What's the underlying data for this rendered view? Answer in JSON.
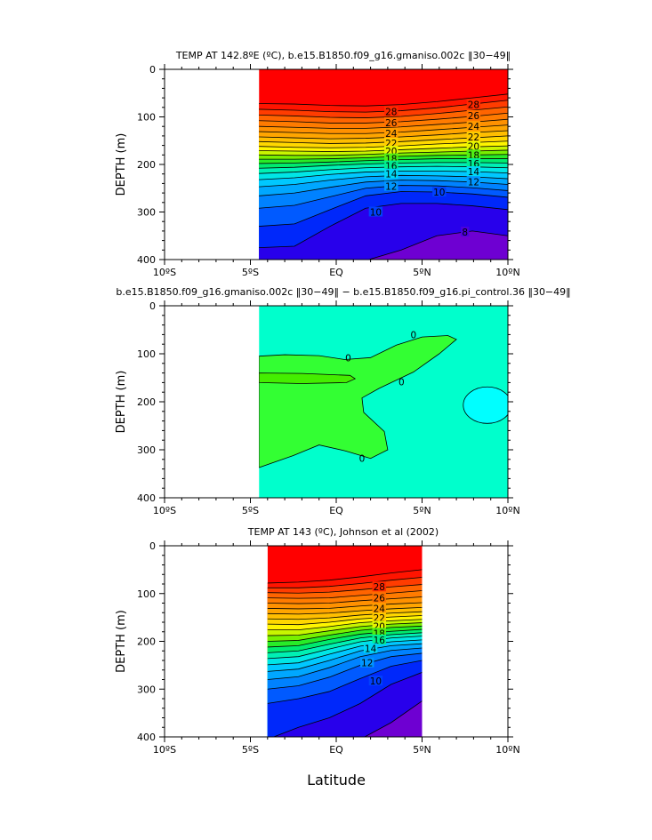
{
  "chart_data": [
    {
      "type": "contour",
      "title": "TEMP AT 142.8ºE (ºC), b.e15.B1850.f09_g16.gmaniso.002c ‖30−49‖",
      "ylabel": "DEPTH (m)",
      "xlabel": "",
      "xlim": [
        -10,
        10
      ],
      "ylim": [
        400,
        0
      ],
      "x_ticks": [
        "10ºS",
        "5ºS",
        "EQ",
        "5ºN",
        "10ºN"
      ],
      "y_ticks": [
        "0",
        "100",
        "200",
        "300",
        "400"
      ],
      "data_x_range": [
        -4.5,
        10
      ],
      "contour_interval": 1,
      "contours": [
        {
          "level": 29,
          "depth": [
            72,
            73,
            76,
            77,
            74,
            68,
            60,
            52
          ]
        },
        {
          "level": 28,
          "depth": [
            84,
            86,
            89,
            90,
            87,
            81,
            73,
            65
          ]
        },
        {
          "level": 27,
          "depth": [
            96,
            98,
            101,
            102,
            99,
            93,
            86,
            79
          ]
        },
        {
          "level": 26,
          "depth": [
            108,
            110,
            113,
            113,
            110,
            105,
            99,
            92
          ]
        },
        {
          "level": 25,
          "depth": [
            120,
            122,
            124,
            124,
            121,
            116,
            111,
            105
          ]
        },
        {
          "level": 24,
          "depth": [
            131,
            133,
            135,
            135,
            132,
            127,
            122,
            117
          ]
        },
        {
          "level": 23,
          "depth": [
            142,
            144,
            146,
            145,
            142,
            138,
            133,
            129
          ]
        },
        {
          "level": 22,
          "depth": [
            152,
            154,
            156,
            155,
            152,
            148,
            144,
            140
          ]
        },
        {
          "level": 21,
          "depth": [
            162,
            164,
            165,
            164,
            161,
            157,
            154,
            151
          ]
        },
        {
          "level": 20,
          "depth": [
            171,
            172,
            173,
            172,
            169,
            166,
            163,
            161
          ]
        },
        {
          "level": 19,
          "depth": [
            180,
            181,
            181,
            179,
            176,
            174,
            172,
            170
          ]
        },
        {
          "level": 18,
          "depth": [
            189,
            189,
            188,
            186,
            183,
            181,
            180,
            179
          ]
        },
        {
          "level": 17,
          "depth": [
            198,
            197,
            195,
            192,
            190,
            188,
            188,
            188
          ]
        },
        {
          "level": 16,
          "depth": [
            208,
            206,
            202,
            199,
            197,
            196,
            196,
            197
          ]
        },
        {
          "level": 15,
          "depth": [
            219,
            216,
            211,
            207,
            205,
            204,
            205,
            207
          ]
        },
        {
          "level": 14,
          "depth": [
            232,
            228,
            221,
            216,
            214,
            214,
            215,
            218
          ]
        },
        {
          "level": 13,
          "depth": [
            247,
            242,
            233,
            226,
            223,
            224,
            226,
            230
          ]
        },
        {
          "level": 12,
          "depth": [
            266,
            260,
            248,
            237,
            233,
            234,
            237,
            242
          ]
        },
        {
          "level": 11,
          "depth": [
            292,
            286,
            268,
            250,
            244,
            245,
            249,
            255
          ]
        },
        {
          "level": 10,
          "depth": [
            330,
            325,
            295,
            266,
            257,
            258,
            262,
            269
          ]
        },
        {
          "level": 9,
          "depth": [
            375,
            372,
            330,
            292,
            282,
            282,
            287,
            295
          ]
        },
        {
          "level": 8,
          "depth": [
            405,
            405,
            405,
            402,
            380,
            350,
            340,
            350
          ]
        }
      ],
      "contour_labels": [
        {
          "x": 3.2,
          "depth": 89,
          "text": "28"
        },
        {
          "x": 8.0,
          "depth": 74,
          "text": "28"
        },
        {
          "x": 3.2,
          "depth": 112,
          "text": "26"
        },
        {
          "x": 8.0,
          "depth": 97,
          "text": "26"
        },
        {
          "x": 3.2,
          "depth": 135,
          "text": "24"
        },
        {
          "x": 8.0,
          "depth": 120,
          "text": "24"
        },
        {
          "x": 3.2,
          "depth": 155,
          "text": "22"
        },
        {
          "x": 8.0,
          "depth": 142,
          "text": "22"
        },
        {
          "x": 3.2,
          "depth": 172,
          "text": "20"
        },
        {
          "x": 8.0,
          "depth": 162,
          "text": "20"
        },
        {
          "x": 3.2,
          "depth": 188,
          "text": "18"
        },
        {
          "x": 8.0,
          "depth": 180,
          "text": "18"
        },
        {
          "x": 3.2,
          "depth": 203,
          "text": "16"
        },
        {
          "x": 8.0,
          "depth": 198,
          "text": "16"
        },
        {
          "x": 3.2,
          "depth": 220,
          "text": "14"
        },
        {
          "x": 8.0,
          "depth": 215,
          "text": "14"
        },
        {
          "x": 3.2,
          "depth": 246,
          "text": "12"
        },
        {
          "x": 8.0,
          "depth": 236,
          "text": "12"
        },
        {
          "x": 2.3,
          "depth": 300,
          "text": "10"
        },
        {
          "x": 6.0,
          "depth": 258,
          "text": "10"
        },
        {
          "x": 7.5,
          "depth": 342,
          "text": "8"
        }
      ]
    },
    {
      "type": "contour",
      "title": "b.e15.B1850.f09_g16.gmaniso.002c ‖30−49‖ − b.e15.B1850.f09_g16.pi_control.36 ‖30−49‖",
      "ylabel": "DEPTH (m)",
      "xlabel": "",
      "xlim": [
        -10,
        10
      ],
      "ylim": [
        400,
        0
      ],
      "x_ticks": [
        "10ºS",
        "5ºS",
        "EQ",
        "5ºN",
        "10ºN"
      ],
      "y_ticks": [
        "0",
        "100",
        "200",
        "300",
        "400"
      ],
      "data_x_range": [
        -4.5,
        10
      ],
      "contour_labels": [
        {
          "x": 0.7,
          "depth": 108,
          "text": "0"
        },
        {
          "x": 4.5,
          "depth": 60,
          "text": "0"
        },
        {
          "x": 3.8,
          "depth": 158,
          "text": "0"
        },
        {
          "x": 1.5,
          "depth": 318,
          "text": "0"
        }
      ]
    },
    {
      "type": "contour",
      "title": "TEMP AT 143 (ºC), Johnson et al (2002)",
      "ylabel": "DEPTH (m)",
      "xlabel": "Latitude",
      "xlim": [
        -10,
        10
      ],
      "ylim": [
        400,
        0
      ],
      "x_ticks": [
        "10ºS",
        "5ºS",
        "EQ",
        "5ºN",
        "10ºN"
      ],
      "y_ticks": [
        "0",
        "100",
        "200",
        "300",
        "400"
      ],
      "data_x_range": [
        -4,
        5
      ],
      "contour_interval": 1,
      "contours": [
        {
          "level": 29,
          "depth": [
            78,
            76,
            72,
            65,
            57,
            50
          ]
        },
        {
          "level": 28,
          "depth": [
            88,
            88,
            85,
            79,
            72,
            66
          ]
        },
        {
          "level": 27,
          "depth": [
            98,
            99,
            97,
            92,
            86,
            81
          ]
        },
        {
          "level": 26,
          "depth": [
            109,
            110,
            109,
            104,
            99,
            94
          ]
        },
        {
          "level": 25,
          "depth": [
            120,
            121,
            120,
            115,
            111,
            107
          ]
        },
        {
          "level": 24,
          "depth": [
            131,
            132,
            131,
            126,
            122,
            119
          ]
        },
        {
          "level": 23,
          "depth": [
            142,
            143,
            141,
            136,
            132,
            129
          ]
        },
        {
          "level": 22,
          "depth": [
            153,
            154,
            151,
            145,
            141,
            138
          ]
        },
        {
          "level": 21,
          "depth": [
            164,
            165,
            160,
            153,
            149,
            146
          ]
        },
        {
          "level": 20,
          "depth": [
            176,
            176,
            169,
            161,
            157,
            154
          ]
        },
        {
          "level": 19,
          "depth": [
            188,
            187,
            178,
            169,
            164,
            161
          ]
        },
        {
          "level": 18,
          "depth": [
            200,
            198,
            187,
            177,
            171,
            168
          ]
        },
        {
          "level": 17,
          "depth": [
            212,
            209,
            196,
            185,
            179,
            175
          ]
        },
        {
          "level": 16,
          "depth": [
            224,
            220,
            206,
            193,
            186,
            182
          ]
        },
        {
          "level": 15,
          "depth": [
            236,
            232,
            216,
            201,
            193,
            189
          ]
        },
        {
          "level": 14,
          "depth": [
            249,
            245,
            227,
            210,
            201,
            197
          ]
        },
        {
          "level": 13,
          "depth": [
            263,
            258,
            240,
            220,
            209,
            205
          ]
        },
        {
          "level": 12,
          "depth": [
            280,
            274,
            255,
            232,
            219,
            214
          ]
        },
        {
          "level": 11,
          "depth": [
            300,
            293,
            275,
            250,
            232,
            225
          ]
        },
        {
          "level": 10,
          "depth": [
            330,
            320,
            305,
            278,
            252,
            240
          ]
        },
        {
          "level": 9,
          "depth": [
            405,
            380,
            360,
            330,
            290,
            265
          ]
        },
        {
          "level": 8,
          "depth": [
            405,
            405,
            405,
            405,
            370,
            325
          ]
        }
      ],
      "contour_labels": [
        {
          "x": 2.5,
          "depth": 86,
          "text": "28"
        },
        {
          "x": 2.5,
          "depth": 109,
          "text": "26"
        },
        {
          "x": 2.5,
          "depth": 131,
          "text": "24"
        },
        {
          "x": 2.5,
          "depth": 151,
          "text": "22"
        },
        {
          "x": 2.5,
          "depth": 168,
          "text": "20"
        },
        {
          "x": 2.5,
          "depth": 183,
          "text": "18"
        },
        {
          "x": 2.5,
          "depth": 197,
          "text": "16"
        },
        {
          "x": 2.0,
          "depth": 215,
          "text": "14"
        },
        {
          "x": 1.8,
          "depth": 245,
          "text": "12"
        },
        {
          "x": 2.3,
          "depth": 283,
          "text": "10"
        }
      ]
    }
  ]
}
